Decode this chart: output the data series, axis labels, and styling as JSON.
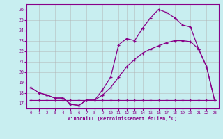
{
  "xlabel": "Windchill (Refroidissement éolien,°C)",
  "bg_color": "#c8eef0",
  "grid_color": "#b0b0b0",
  "line_color": "#880088",
  "x_ticks": [
    0,
    1,
    2,
    3,
    4,
    5,
    6,
    7,
    8,
    9,
    10,
    11,
    12,
    13,
    14,
    15,
    16,
    17,
    18,
    19,
    20,
    21,
    22,
    23
  ],
  "ylim": [
    16.5,
    26.5
  ],
  "xlim": [
    -0.5,
    23.5
  ],
  "yticks": [
    17,
    18,
    19,
    20,
    21,
    22,
    23,
    24,
    25,
    26
  ],
  "line_flat": [
    17.3,
    17.3,
    17.3,
    17.3,
    17.3,
    17.3,
    17.3,
    17.3,
    17.3,
    17.3,
    17.3,
    17.3,
    17.3,
    17.3,
    17.3,
    17.3,
    17.3,
    17.3,
    17.3,
    17.3,
    17.3,
    17.3,
    17.3,
    17.3
  ],
  "line_mid": [
    18.5,
    18.0,
    17.8,
    17.5,
    17.5,
    16.9,
    16.8,
    17.3,
    17.3,
    17.8,
    18.5,
    19.5,
    20.5,
    21.2,
    21.8,
    22.2,
    22.5,
    22.8,
    23.0,
    23.0,
    22.9,
    22.2,
    20.5,
    17.3
  ],
  "line_top": [
    18.5,
    18.0,
    17.8,
    17.5,
    17.5,
    16.9,
    16.8,
    17.3,
    17.3,
    18.3,
    19.5,
    22.6,
    23.2,
    23.0,
    24.2,
    25.2,
    26.0,
    25.7,
    25.2,
    24.5,
    24.3,
    22.2,
    20.5,
    17.3
  ]
}
